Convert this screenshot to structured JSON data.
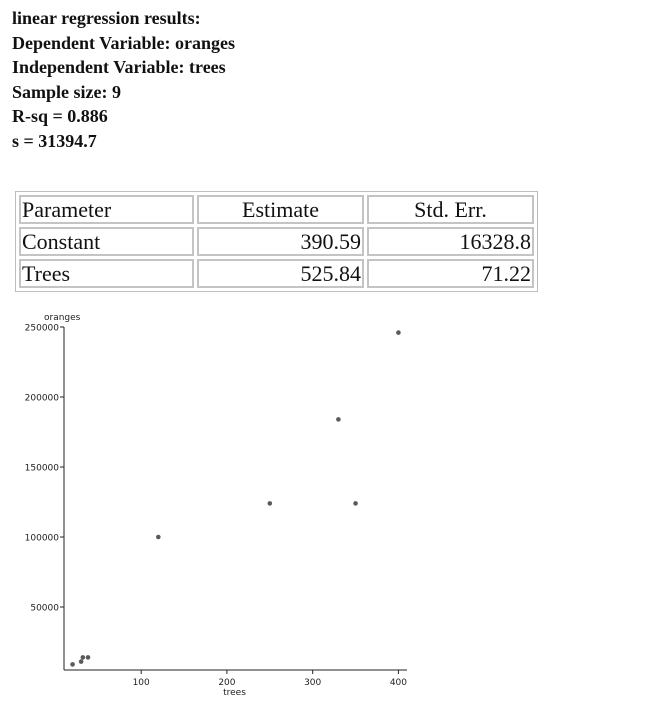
{
  "summary": {
    "lines": [
      "linear regression results:",
      "Dependent Variable: oranges",
      "Independent Variable: trees",
      "Sample size: 9",
      "R-sq = 0.886",
      "s = 31394.7"
    ]
  },
  "table": {
    "headers": [
      "Parameter",
      "Estimate",
      "Std. Err."
    ],
    "rows": [
      [
        "Constant",
        "390.59",
        "16328.8"
      ],
      [
        "Trees",
        "525.84",
        "71.22"
      ]
    ]
  },
  "chart_data": {
    "type": "scatter",
    "xlabel": "trees",
    "ylabel": "oranges",
    "xlim": [
      10,
      410
    ],
    "ylim": [
      5000,
      250000
    ],
    "x_ticks": [
      100,
      200,
      300,
      400
    ],
    "y_ticks": [
      50000,
      100000,
      150000,
      200000,
      250000
    ],
    "x_tick_labels": [
      "100",
      "200",
      "300",
      "400"
    ],
    "y_tick_labels": [
      "50000",
      "100000",
      "150000",
      "200000",
      "250000"
    ],
    "grid": false,
    "points": [
      {
        "x": 20,
        "y": 9000
      },
      {
        "x": 30,
        "y": 11000
      },
      {
        "x": 32,
        "y": 14000
      },
      {
        "x": 38,
        "y": 14000
      },
      {
        "x": 120,
        "y": 100000
      },
      {
        "x": 250,
        "y": 124000
      },
      {
        "x": 330,
        "y": 184000
      },
      {
        "x": 350,
        "y": 124000
      },
      {
        "x": 400,
        "y": 246000
      }
    ],
    "colors": {
      "point": "#5a5a5a",
      "axis": "#222222"
    }
  }
}
